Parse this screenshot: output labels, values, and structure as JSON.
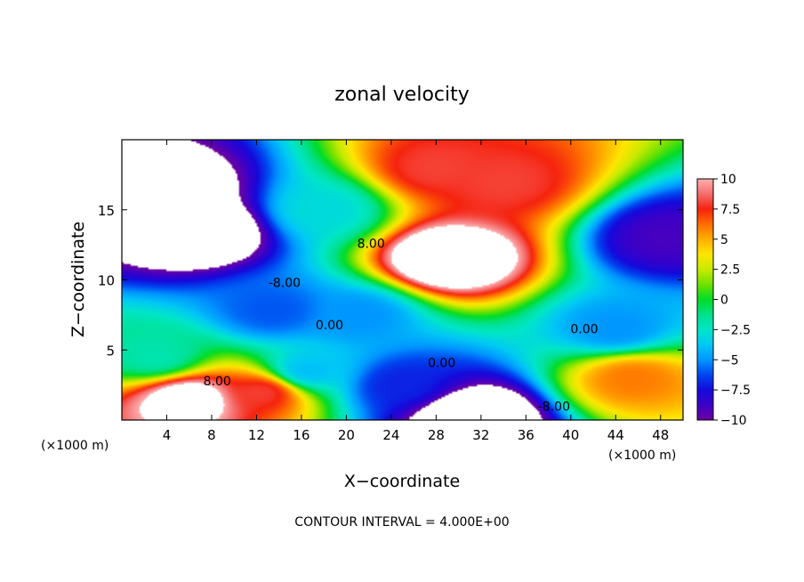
{
  "chart_data": {
    "type": "heatmap",
    "title": "zonal velocity",
    "xlabel": "X−coordinate",
    "ylabel": "Z−coordinate",
    "x_unit": "(×1000 m)",
    "y_unit": "(×1000 m)",
    "xlim": [
      0,
      50
    ],
    "ylim": [
      0,
      20
    ],
    "x_ticks": [
      4,
      8,
      12,
      16,
      20,
      24,
      28,
      32,
      36,
      40,
      44,
      48
    ],
    "y_ticks": [
      5,
      10,
      15
    ],
    "footnote": "CONTOUR INTERVAL = 4.000E+00",
    "colorbar": {
      "range": [
        -10,
        10
      ],
      "ticks": [
        10,
        7.5,
        5,
        2.5,
        0,
        -2.5,
        -5,
        -7.5,
        -10
      ],
      "tick_labels": [
        "10",
        "7.5",
        "5",
        "2.5",
        "0",
        "−2.5",
        "−5",
        "−7.5",
        "−10"
      ]
    },
    "contour_labels": [
      {
        "text": "-8.00",
        "x": 14.5,
        "y": 9.8
      },
      {
        "text": "0.00",
        "x": 18.5,
        "y": 6.8
      },
      {
        "text": "8.00",
        "x": 22.2,
        "y": 12.6
      },
      {
        "text": "0.00",
        "x": 41.2,
        "y": 6.5
      },
      {
        "text": "0.00",
        "x": 28.5,
        "y": 4.1
      },
      {
        "text": "8.00",
        "x": 8.5,
        "y": 2.8
      },
      {
        "text": "-8.00",
        "x": 38.5,
        "y": 1.0
      }
    ],
    "features": [
      {
        "x": 7,
        "y": 13.5,
        "value": -14
      },
      {
        "x": 4.5,
        "y": 16.5,
        "value": -12
      },
      {
        "x": 29,
        "y": 11.5,
        "value": 14
      },
      {
        "x": 28,
        "y": 18,
        "value": 8
      },
      {
        "x": 34,
        "y": 17,
        "value": 8
      },
      {
        "x": 6,
        "y": 1.5,
        "value": 12
      },
      {
        "x": 12.5,
        "y": 2.0,
        "value": 8
      },
      {
        "x": 31,
        "y": 0.2,
        "value": -14
      },
      {
        "x": 48.5,
        "y": 13,
        "value": -9
      },
      {
        "x": 13.5,
        "y": 7.8,
        "value": -6
      },
      {
        "x": 21,
        "y": 7.5,
        "value": -5
      },
      {
        "x": 44,
        "y": 6.5,
        "value": -5
      },
      {
        "x": 45.5,
        "y": 3.0,
        "value": 6
      },
      {
        "x": 25,
        "y": 2.5,
        "value": -7
      },
      {
        "x": 3,
        "y": 4.5,
        "value": -2
      },
      {
        "x": 18,
        "y": 15,
        "value": -3
      },
      {
        "x": 16.5,
        "y": 3.5,
        "value": -4
      }
    ]
  }
}
